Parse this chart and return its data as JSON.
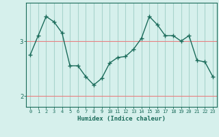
{
  "title": "",
  "xlabel": "Humidex (Indice chaleur)",
  "x_values": [
    0,
    1,
    2,
    3,
    4,
    5,
    6,
    7,
    8,
    9,
    10,
    11,
    12,
    13,
    14,
    15,
    16,
    17,
    18,
    19,
    20,
    21,
    22,
    23
  ],
  "y_values": [
    2.75,
    3.1,
    3.45,
    3.35,
    3.15,
    2.55,
    2.55,
    2.35,
    2.2,
    2.32,
    2.6,
    2.7,
    2.72,
    2.85,
    3.05,
    3.45,
    3.3,
    3.1,
    3.1,
    3.0,
    3.1,
    2.65,
    2.62,
    2.35
  ],
  "line_color": "#1a6b5a",
  "marker_color": "#1a6b5a",
  "bg_color": "#d6f0ec",
  "h_grid_color": "#e88080",
  "v_grid_color": "#a8d4cc",
  "axis_color": "#1a6b5a",
  "ylim": [
    1.8,
    3.7
  ],
  "yticks": [
    2,
    3
  ],
  "xlim": [
    -0.5,
    23.5
  ]
}
